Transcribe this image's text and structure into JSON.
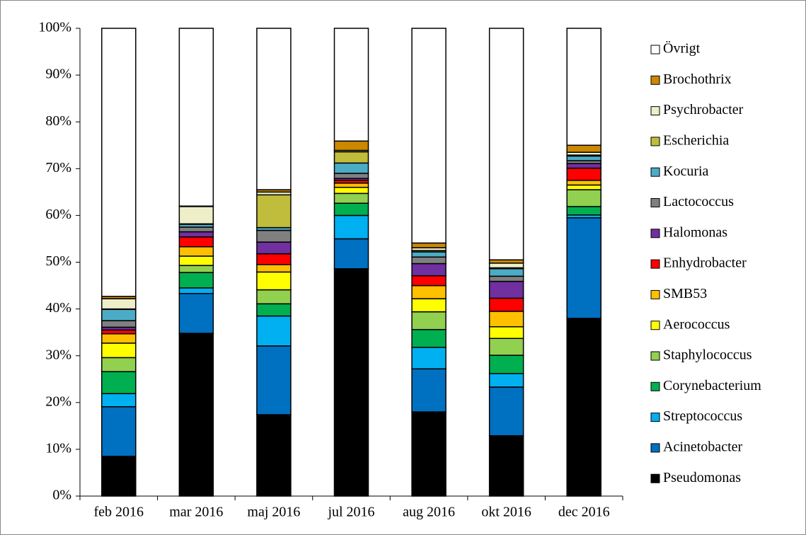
{
  "chart_data": {
    "type": "stacked_bar",
    "categories": [
      "feb 2016",
      "mar 2016",
      "maj 2016",
      "jul 2016",
      "aug 2016",
      "okt 2016",
      "dec 2016"
    ],
    "ylim": [
      0,
      100
    ],
    "yticks": [
      {
        "value": 0,
        "label": "0%"
      },
      {
        "value": 10,
        "label": "10%"
      },
      {
        "value": 20,
        "label": "20%"
      },
      {
        "value": 30,
        "label": "30%"
      },
      {
        "value": 40,
        "label": "40%"
      },
      {
        "value": 50,
        "label": "50%"
      },
      {
        "value": 60,
        "label": "60%"
      },
      {
        "value": 70,
        "label": "70%"
      },
      {
        "value": 80,
        "label": "80%"
      },
      {
        "value": 90,
        "label": "90%"
      },
      {
        "value": 100,
        "label": "100%"
      }
    ],
    "legend": "right",
    "series": [
      {
        "name": "Pseudomonas",
        "color": "#000000",
        "values": [
          8.5,
          34.8,
          17.4,
          48.6,
          18.0,
          12.9,
          38.0
        ]
      },
      {
        "name": "Acinetobacter",
        "color": "#0070c0",
        "values": [
          10.6,
          8.5,
          14.7,
          6.4,
          9.2,
          10.4,
          21.5
        ]
      },
      {
        "name": "Streptococcus",
        "color": "#00b0f0",
        "values": [
          2.8,
          1.2,
          6.4,
          5.0,
          4.6,
          2.9,
          0.6
        ]
      },
      {
        "name": "Corynebacterium",
        "color": "#00b050",
        "values": [
          4.7,
          3.3,
          2.6,
          2.6,
          3.8,
          3.9,
          1.8
        ]
      },
      {
        "name": "Staphylococcus",
        "color": "#92d050",
        "values": [
          3.0,
          1.5,
          3.0,
          2.1,
          3.8,
          3.6,
          3.6
        ]
      },
      {
        "name": "Aerococcus",
        "color": "#ffff00",
        "values": [
          3.1,
          2.0,
          3.8,
          1.3,
          2.8,
          2.5,
          1.0
        ]
      },
      {
        "name": "SMB53",
        "color": "#ffc000",
        "values": [
          2.0,
          2.0,
          1.6,
          0.9,
          2.8,
          3.3,
          1.0
        ]
      },
      {
        "name": "Enhydrobacter",
        "color": "#ff0000",
        "values": [
          0.8,
          2.1,
          2.3,
          0.6,
          2.1,
          2.8,
          2.6
        ]
      },
      {
        "name": "Halomonas",
        "color": "#7030a0",
        "values": [
          0.6,
          1.1,
          2.5,
          0.4,
          2.6,
          3.6,
          1.0
        ]
      },
      {
        "name": "Lactococcus",
        "color": "#808080",
        "values": [
          1.4,
          1.0,
          2.5,
          1.1,
          1.4,
          1.1,
          0.6
        ]
      },
      {
        "name": "Kocuria",
        "color": "#4bacc6",
        "values": [
          2.4,
          0.6,
          0.6,
          2.2,
          1.1,
          1.6,
          1.0
        ]
      },
      {
        "name": "Escherichia",
        "color": "#c0bd3c",
        "values": [
          0.1,
          0.1,
          7.0,
          2.4,
          0.3,
          0.2,
          0.2
        ]
      },
      {
        "name": "Psychrobacter",
        "color": "#eeeec8",
        "values": [
          2.2,
          3.7,
          0.6,
          0.3,
          0.6,
          1.0,
          0.6
        ]
      },
      {
        "name": "Brochothrix",
        "color": "#cc8800",
        "values": [
          0.5,
          0.1,
          0.5,
          2.0,
          1.0,
          0.7,
          1.5
        ]
      },
      {
        "name": "Övrigt",
        "color": "#ffffff",
        "values": [
          57.3,
          38.0,
          34.5,
          24.1,
          45.9,
          49.5,
          25.0
        ]
      }
    ]
  }
}
